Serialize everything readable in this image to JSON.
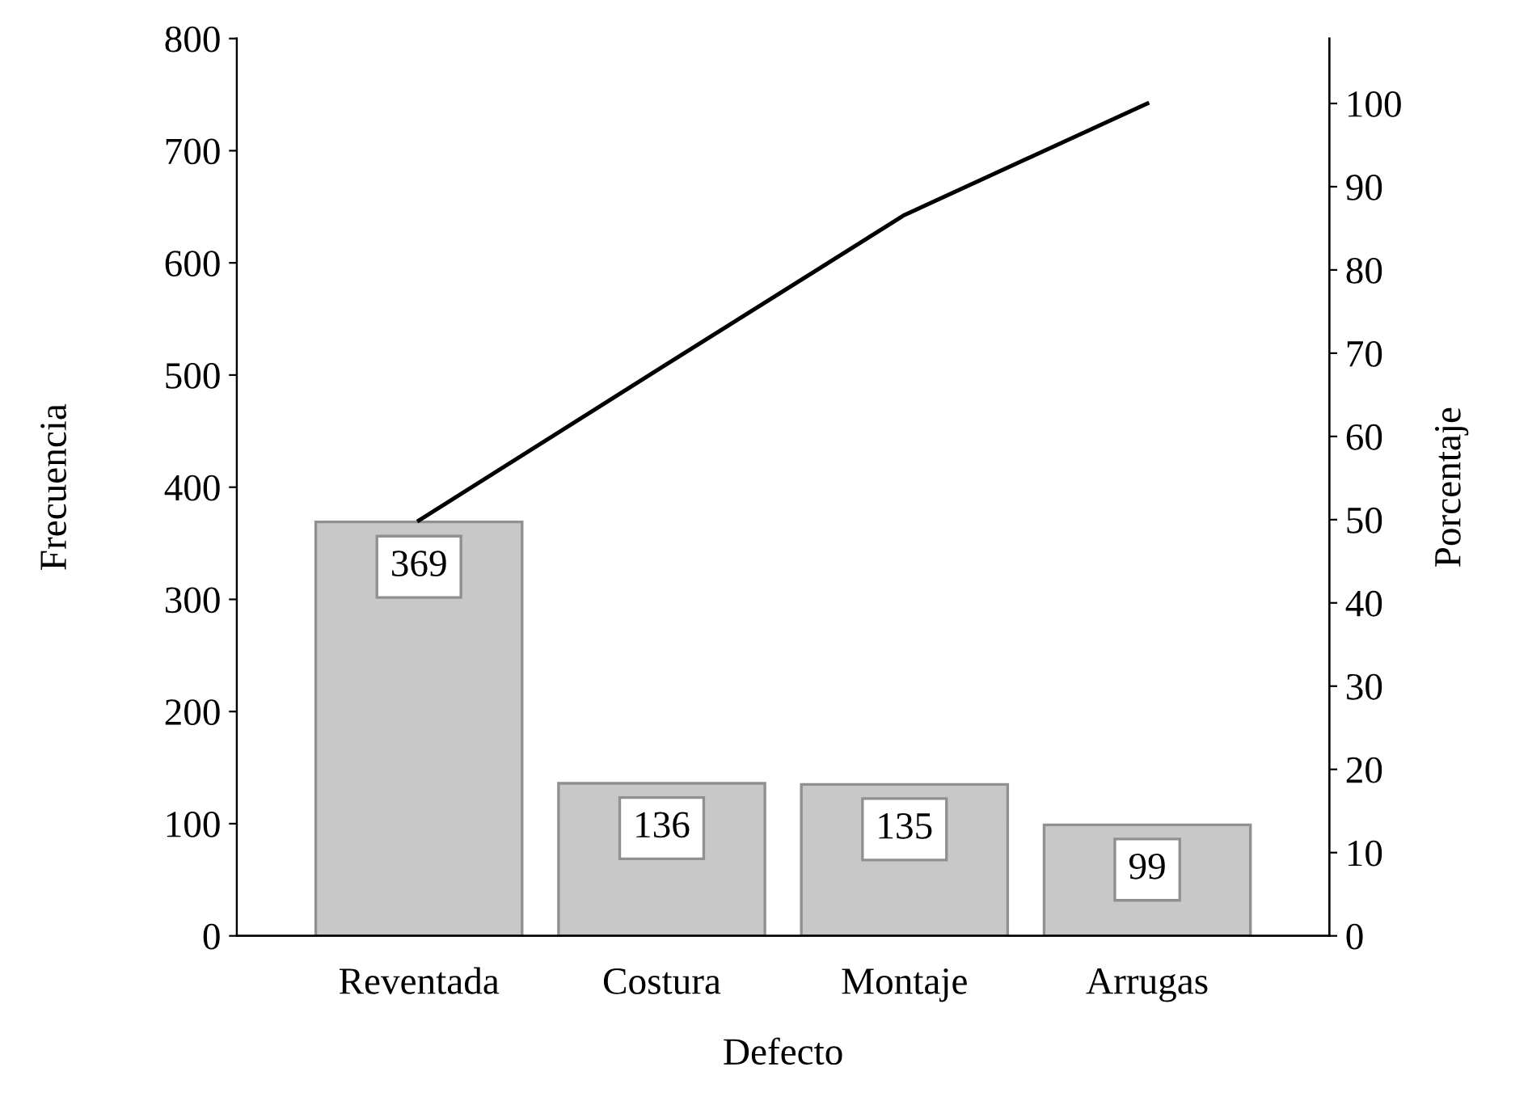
{
  "chart_data": {
    "type": "bar",
    "xlabel": "Defecto",
    "ylabel": "Frecuencia",
    "y2label": "Porcentaje",
    "categories": [
      "Reventada",
      "Costura",
      "Montaje",
      "Arrugas"
    ],
    "series": [
      {
        "type": "bar",
        "color": "#c8c8c8",
        "values": [
          369,
          136,
          135,
          99
        ],
        "value_labels": [
          "369",
          "136",
          "135",
          "99"
        ]
      },
      {
        "type": "line",
        "axis": "y2",
        "color": "#000000",
        "values": [
          49.9,
          68.3,
          86.6,
          100
        ]
      }
    ],
    "ylim": [
      0,
      800
    ],
    "yticks": [
      0,
      100,
      200,
      300,
      400,
      500,
      600,
      700,
      800
    ],
    "y2lim": [
      0,
      107.8
    ],
    "y2ticks": [
      0,
      10,
      20,
      30,
      40,
      50,
      60,
      70,
      80,
      90,
      100
    ],
    "grid": false,
    "legend": false,
    "line_style": "solid",
    "marker": "none"
  }
}
